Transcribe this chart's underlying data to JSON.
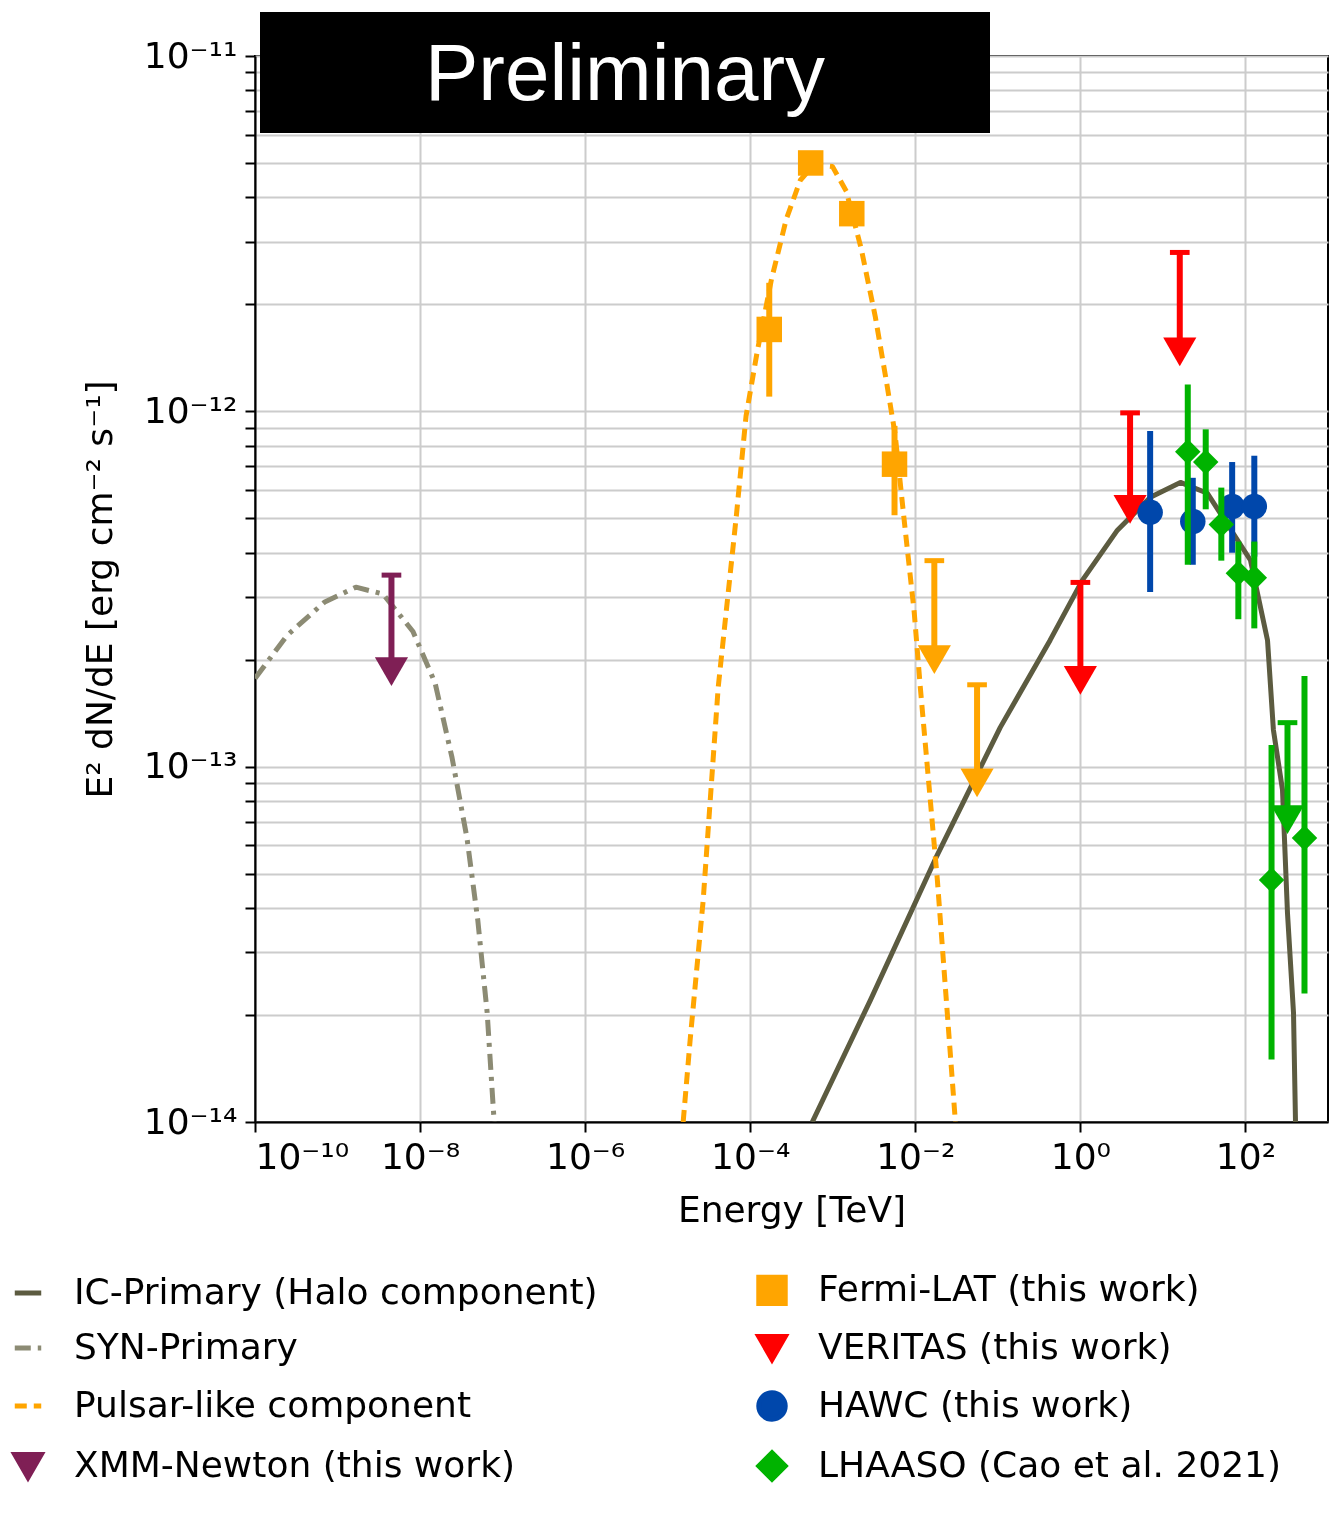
{
  "chart_data": {
    "type": "scatter",
    "xlabel": "Energy [TeV]",
    "ylabel": "E² dN/dE [erg cm⁻² s⁻¹]",
    "annotations": [
      "Preliminary"
    ],
    "log": "xy",
    "grid": true,
    "legend": "bottom",
    "xlim": [
      1e-10,
      1000
    ],
    "ylim": [
      1e-14,
      1e-11
    ],
    "xticks": [
      {
        "value": 1e-10,
        "label": "10⁻¹⁰"
      },
      {
        "value": 1e-08,
        "label": "10⁻⁸"
      },
      {
        "value": 1e-06,
        "label": "10⁻⁶"
      },
      {
        "value": 0.0001,
        "label": "10⁻⁴"
      },
      {
        "value": 0.01,
        "label": "10⁻²"
      },
      {
        "value": 1,
        "label": "10⁰"
      },
      {
        "value": 100,
        "label": "10²"
      }
    ],
    "yticks": [
      {
        "value": 1e-14,
        "label": "10⁻¹⁴"
      },
      {
        "value": 2e-14,
        "label": null
      },
      {
        "value": 3e-14,
        "label": null
      },
      {
        "value": 4e-14,
        "label": null
      },
      {
        "value": 5e-14,
        "label": null
      },
      {
        "value": 6e-14,
        "label": null
      },
      {
        "value": 7e-14,
        "label": null
      },
      {
        "value": 8e-14,
        "label": null
      },
      {
        "value": 9e-14,
        "label": null
      },
      {
        "value": 1e-13,
        "label": "10⁻¹³"
      },
      {
        "value": 2e-13,
        "label": null
      },
      {
        "value": 3e-13,
        "label": null
      },
      {
        "value": 4e-13,
        "label": null
      },
      {
        "value": 5e-13,
        "label": null
      },
      {
        "value": 6e-13,
        "label": null
      },
      {
        "value": 7e-13,
        "label": null
      },
      {
        "value": 8e-13,
        "label": null
      },
      {
        "value": 9e-13,
        "label": null
      },
      {
        "value": 1e-12,
        "label": "10⁻¹²"
      },
      {
        "value": 2e-12,
        "label": null
      },
      {
        "value": 3e-12,
        "label": null
      },
      {
        "value": 4e-12,
        "label": null
      },
      {
        "value": 5e-12,
        "label": null
      },
      {
        "value": 6e-12,
        "label": null
      },
      {
        "value": 7e-12,
        "label": null
      },
      {
        "value": 8e-12,
        "label": null
      },
      {
        "value": 9e-12,
        "label": null
      },
      {
        "value": 1e-11,
        "label": "10⁻¹¹"
      }
    ],
    "series": [
      {
        "name": "IC-Primary (Halo component)",
        "type": "line",
        "color": "#5c5b40",
        "line_style": "solid",
        "x": [
          0.000565,
          0.00285,
          0.0175,
          0.107,
          0.43,
          1.06,
          2.81,
          7.05,
          16.3,
          34.6,
          115,
          185,
          218,
          281,
          323,
          382,
          404
        ],
        "values": [
          1e-14,
          2.2e-14,
          5.5e-14,
          1.29e-13,
          2.27e-13,
          3.35e-13,
          4.63e-13,
          5.73e-13,
          6.31e-13,
          5.88e-13,
          3.81e-13,
          2.27e-13,
          1.27e-13,
          8.6e-14,
          3.87e-14,
          2.03e-14,
          1e-14
        ]
      },
      {
        "name": "SYN-Primary",
        "type": "line",
        "color": "#8c8b74",
        "line_style": "dashdot",
        "x": [
          1e-10,
          2.44e-10,
          6.9e-10,
          1.67e-09,
          3.56e-09,
          8.2e-09,
          1.52e-08,
          2.44e-08,
          3.7e-08,
          5e-08,
          6.5e-08,
          7.9e-08
        ],
        "values": [
          1.77e-13,
          2.34e-13,
          2.9e-13,
          3.2e-13,
          3.06e-13,
          2.4e-13,
          1.72e-13,
          1.06e-13,
          6.3e-14,
          3.7e-14,
          2.03e-14,
          1e-14
        ]
      },
      {
        "name": "Pulsar-like component",
        "type": "line",
        "color": "#ffa500",
        "line_style": "dashed",
        "x": [
          1.54e-05,
          1.87e-05,
          2.69e-05,
          4.09e-05,
          6.8e-05,
          8.9e-05,
          0.000122,
          0.00018,
          0.000273,
          0.000404,
          0.000597,
          0.00099,
          0.00146,
          0.00221,
          0.00327,
          0.00445,
          0.0057,
          0.0074,
          0.0097,
          0.0115,
          0.0185,
          0.0306
        ],
        "values": [
          1e-14,
          1.7e-14,
          4.2e-14,
          1.67e-13,
          5.1e-13,
          9.7e-13,
          1.48e-12,
          2.34e-12,
          3.47e-12,
          4.47e-12,
          4.95e-12,
          4.89e-12,
          4.16e-12,
          2.87e-12,
          1.85e-12,
          1.22e-12,
          8.6e-13,
          4.84e-13,
          2.72e-13,
          1.67e-13,
          4.8e-14,
          1e-14
        ]
      },
      {
        "name": "XMM-Newton (this work)",
        "color": "#7f1f55",
        "marker": "triangle",
        "x": [
          4.5e-09
        ],
        "values": [
          1.85e-13
        ],
        "errors": [
          [
            1.85e-13,
            3.46e-13
          ]
        ]
      },
      {
        "name": "Fermi-LAT (this work)",
        "color": "#ffa500",
        "marker": "square",
        "x": [
          0.00017,
          0.00054,
          0.0017,
          0.0056
        ],
        "values": [
          1.7e-12,
          5e-12,
          3.6e-12,
          7.1e-13
        ],
        "errors": [
          [
            1.1e-12,
            2.3e-12
          ],
          null,
          null,
          [
            5.1e-13,
            9.1e-13
          ]
        ]
      },
      {
        "name": "VERITAS (this work)",
        "color": "#ff0000",
        "marker": "triangle",
        "x": [
          1,
          4.0,
          16
        ],
        "values": [
          1.75e-13,
          5.3e-13,
          1.47e-12
        ],
        "errors": [
          [
            1.75e-13,
            3.3e-13
          ],
          [
            5.3e-13,
            9.9e-13
          ],
          [
            1.47e-12,
            2.8e-12
          ]
        ]
      },
      {
        "name": "HAWC (this work)",
        "color": "#0047ab",
        "marker": "circle",
        "x": [
          7.0,
          23,
          69,
          128
        ],
        "values": [
          5.2e-13,
          4.9e-13,
          5.4e-13,
          5.4e-13
        ],
        "errors": [
          [
            3.1e-13,
            8.8e-13
          ],
          [
            3.7e-13,
            6.5e-13
          ],
          [
            4e-13,
            7.2e-13
          ],
          [
            3.9e-13,
            7.5e-13
          ]
        ]
      },
      {
        "name": "LHAASO (Cao et al. 2021)",
        "color": "#00b300",
        "marker": "diamond",
        "x": [
          20,
          33,
          51,
          82,
          128,
          207,
          519
        ],
        "values": [
          7.7e-13,
          7.2e-13,
          4.8e-13,
          3.5e-13,
          3.4e-13,
          4.8e-14,
          6.3e-14
        ],
        "errors": [
          [
            3.7e-13,
            1.19e-12
          ],
          [
            5.3e-13,
            8.9e-13
          ],
          [
            3.8e-13,
            6.1e-13
          ],
          [
            2.6e-13,
            4.3e-13
          ],
          [
            2.45e-13,
            4.3e-13
          ],
          [
            1.5e-14,
            1.15e-13
          ],
          [
            2.3e-14,
            1.8e-13
          ]
        ]
      },
      {
        "color": "#ffa500",
        "marker": "triangle",
        "x": [
          0.017,
          0.056
        ],
        "values": [
          2e-13,
          9e-14
        ],
        "errors": [
          [
            2e-13,
            3.8e-13
          ],
          [
            9e-14,
            1.7e-13
          ]
        ]
      },
      {
        "color": "#00b300",
        "marker": "triangle",
        "x": [
          323
        ],
        "values": [
          7.1e-14
        ],
        "errors": [
          [
            7.1e-14,
            1.33e-13
          ]
        ]
      }
    ]
  }
}
